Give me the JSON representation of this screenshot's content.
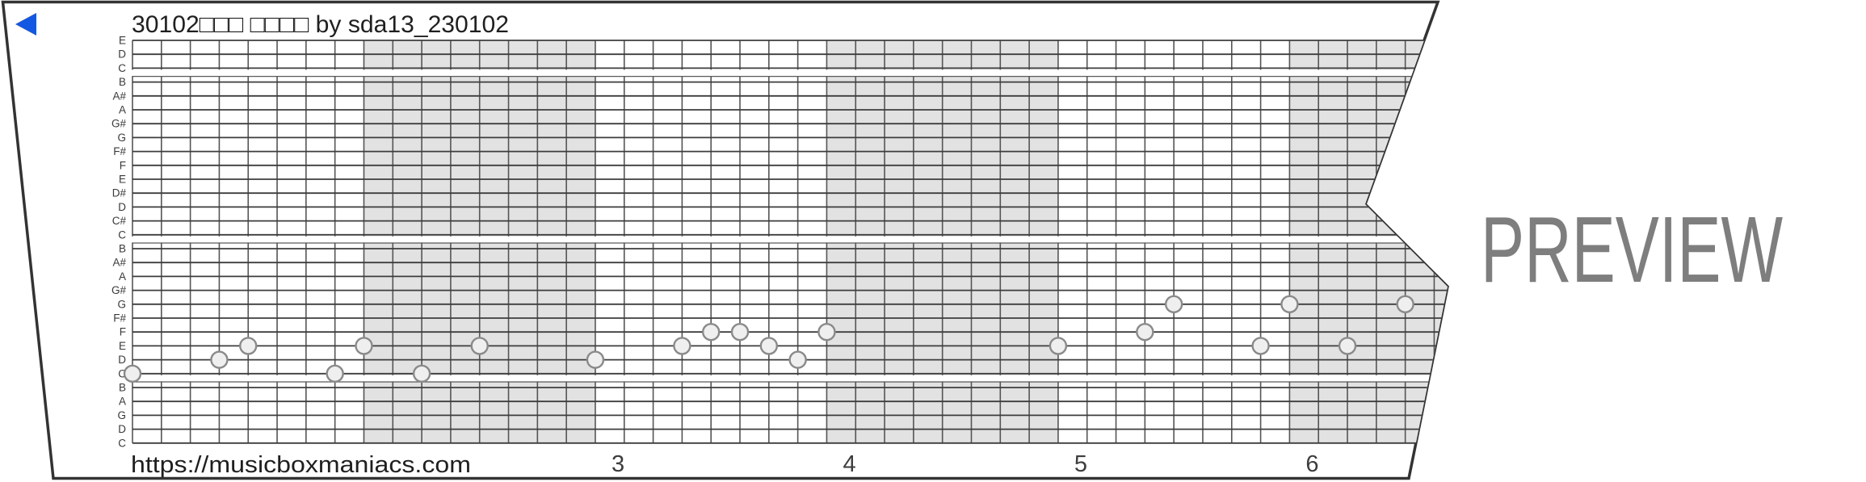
{
  "strip": {
    "title": "30102□□□ □□□□ by sda13_230102",
    "url": "https://musicboxmaniacs.com",
    "watermark": "PREVIEW",
    "note_labels": [
      "E",
      "D",
      "C",
      "B",
      "A#",
      "A",
      "G#",
      "G",
      "F#",
      "F",
      "E",
      "D#",
      "D",
      "C#",
      "C",
      "B",
      "A#",
      "A",
      "G#",
      "G",
      "F#",
      "F",
      "E",
      "D",
      "C",
      "B",
      "A",
      "G",
      "D",
      "C"
    ],
    "c_line_rows": [
      2,
      14,
      24
    ],
    "measure_numbers": [
      {
        "label": "3",
        "measure": 3
      },
      {
        "label": "4",
        "measure": 4
      },
      {
        "label": "5",
        "measure": 5
      },
      {
        "label": "6",
        "measure": 6
      }
    ],
    "notes": [
      {
        "col": 0,
        "row": 24,
        "pitch": "C5"
      },
      {
        "col": 3,
        "row": 23,
        "pitch": "D5"
      },
      {
        "col": 4,
        "row": 22,
        "pitch": "E5"
      },
      {
        "col": 7,
        "row": 24,
        "pitch": "C5"
      },
      {
        "col": 8,
        "row": 22,
        "pitch": "E5"
      },
      {
        "col": 10,
        "row": 24,
        "pitch": "C5"
      },
      {
        "col": 12,
        "row": 22,
        "pitch": "E5"
      },
      {
        "col": 16,
        "row": 23,
        "pitch": "D5"
      },
      {
        "col": 19,
        "row": 22,
        "pitch": "E5"
      },
      {
        "col": 20,
        "row": 21,
        "pitch": "F5"
      },
      {
        "col": 21,
        "row": 21,
        "pitch": "F5"
      },
      {
        "col": 22,
        "row": 22,
        "pitch": "E5"
      },
      {
        "col": 23,
        "row": 23,
        "pitch": "D5"
      },
      {
        "col": 24,
        "row": 21,
        "pitch": "F5"
      },
      {
        "col": 32,
        "row": 22,
        "pitch": "E5"
      },
      {
        "col": 35,
        "row": 21,
        "pitch": "F5"
      },
      {
        "col": 36,
        "row": 19,
        "pitch": "G5"
      },
      {
        "col": 39,
        "row": 22,
        "pitch": "E5"
      },
      {
        "col": 40,
        "row": 19,
        "pitch": "G5"
      },
      {
        "col": 42,
        "row": 22,
        "pitch": "E5"
      },
      {
        "col": 44,
        "row": 19,
        "pitch": "G5"
      }
    ],
    "icons": {
      "back": "left-pointing-triangle"
    },
    "colors": {
      "accent_blue": "#1358e2",
      "measure_shade": "#e2e2e2",
      "h_line": "#3d3d3d",
      "v_line": "#555555",
      "border": "#333333",
      "note_fill": "#efefef",
      "note_stroke": "#8a8a8a",
      "text_dark": "#1f1f1f",
      "label_gray": "#3a3a3a",
      "watermark_gray": "#7e7e7e"
    }
  }
}
